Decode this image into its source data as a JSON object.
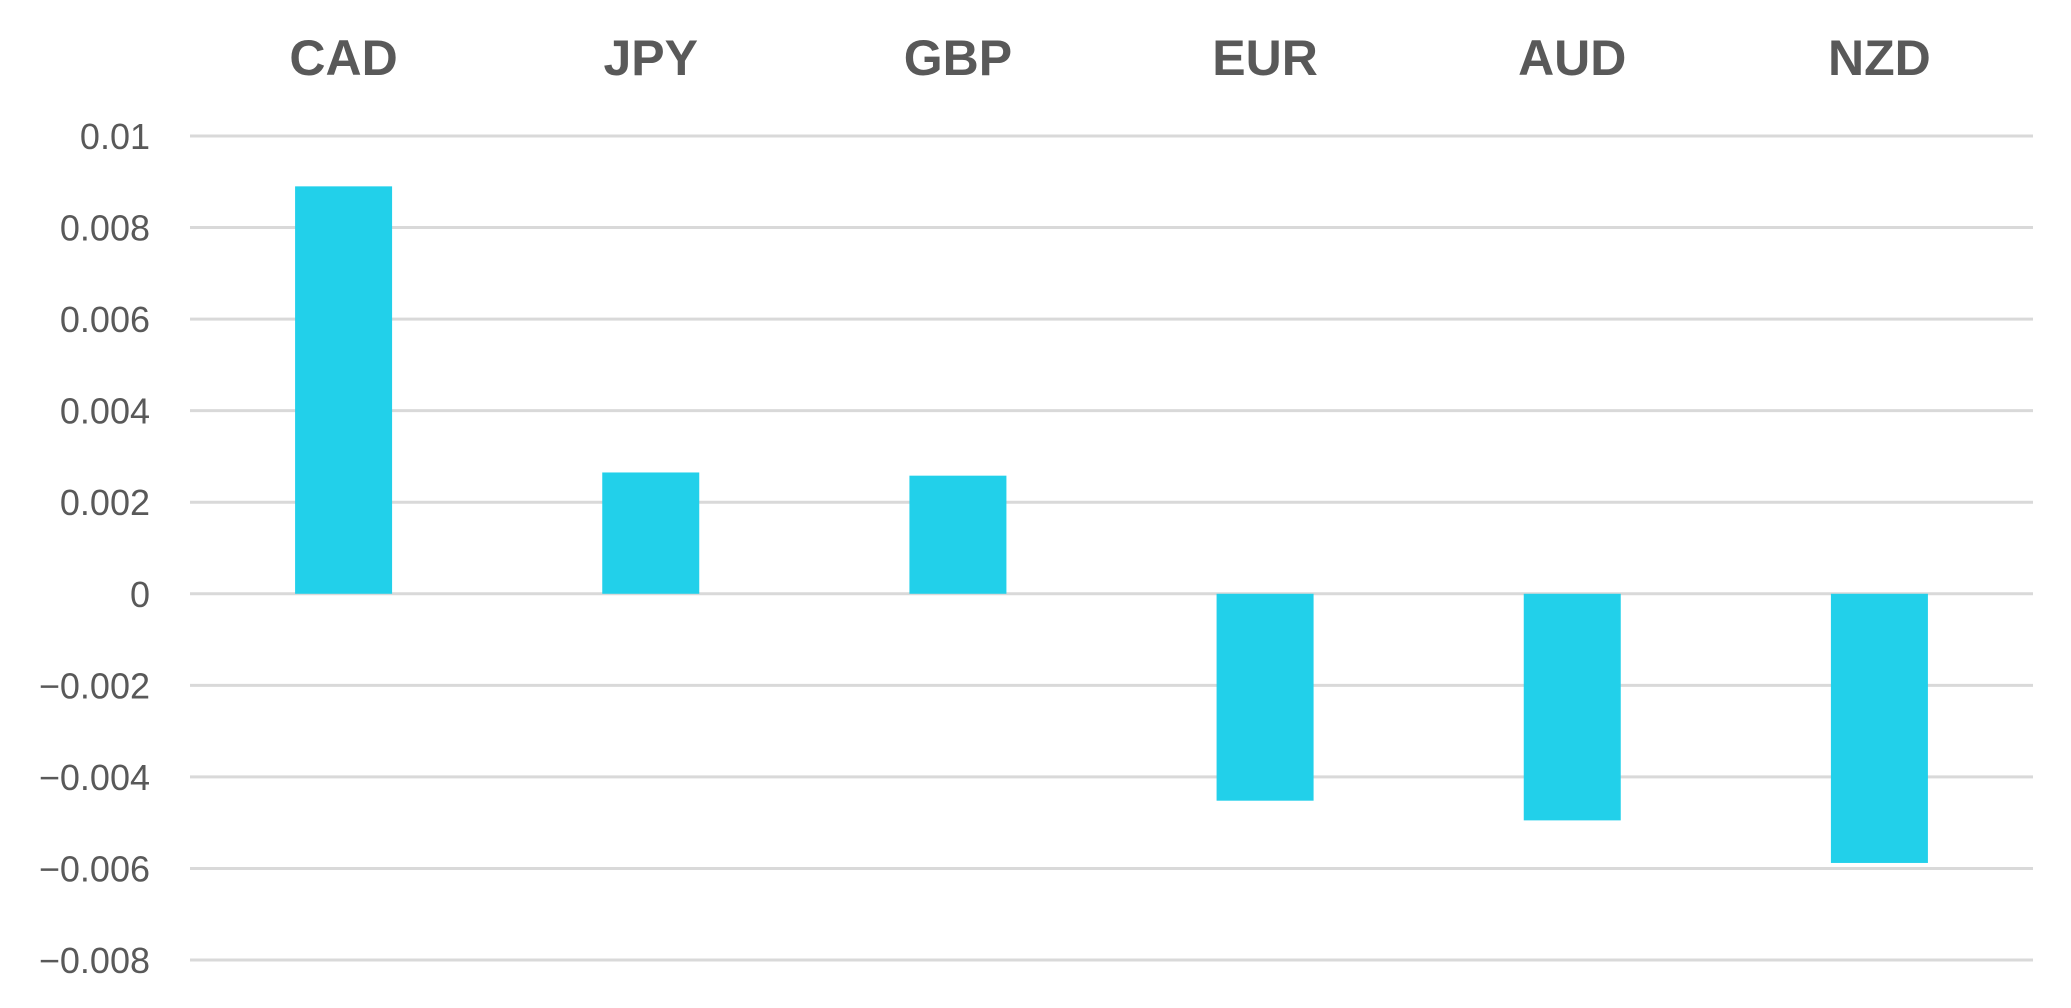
{
  "chart_data": {
    "type": "bar",
    "categories": [
      "CAD",
      "JPY",
      "GBP",
      "EUR",
      "AUD",
      "NZD"
    ],
    "values": [
      0.0089,
      0.00265,
      0.00258,
      -0.00452,
      -0.00495,
      -0.00588
    ],
    "ylim": [
      -0.008,
      0.01
    ],
    "y_ticks": [
      "0.01",
      "0.008",
      "0.006",
      "0.004",
      "0.002",
      "0",
      "−0.002",
      "−0.004",
      "−0.006",
      "−0.008"
    ],
    "y_tick_values": [
      0.01,
      0.008,
      0.006,
      0.004,
      0.002,
      0,
      -0.002,
      -0.004,
      -0.006,
      -0.008
    ],
    "category_axis_position": "top",
    "grid": true,
    "legend": "none",
    "colors": {
      "bar": "#22d0ea",
      "grid": "#d9d9d9",
      "text": "#595959"
    }
  }
}
